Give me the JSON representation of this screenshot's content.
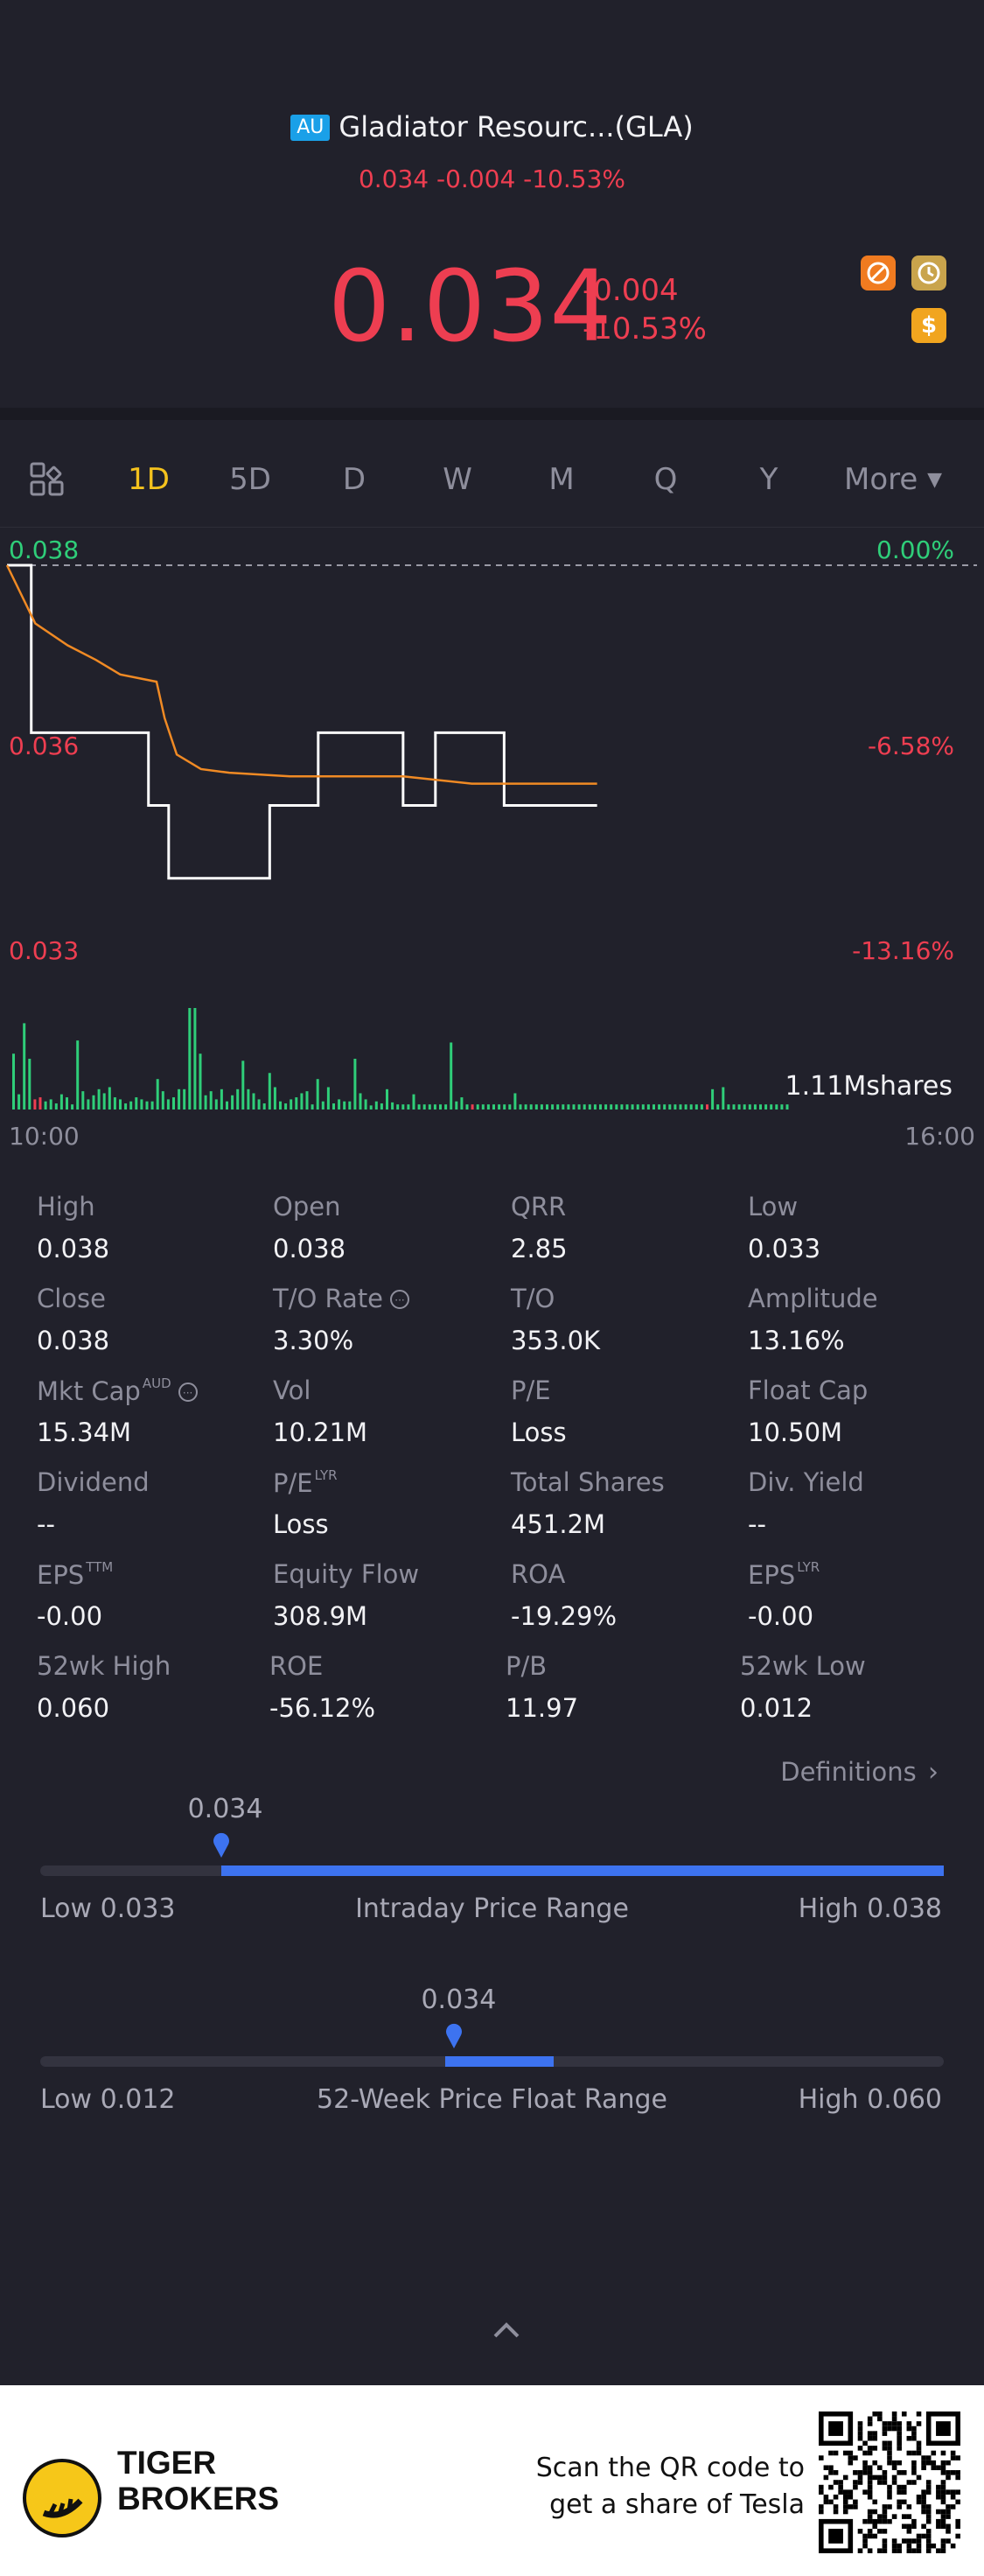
{
  "header": {
    "market_badge": "AU",
    "title": "Gladiator Resourc...(GLA)",
    "sub_quote": "0.034 -0.004 -10.53%",
    "price": "0.034",
    "change": "-0.004",
    "change_pct": "-10.53%"
  },
  "header_icons": [
    "no-trade-icon",
    "history-icon",
    "dollar-icon"
  ],
  "tabs": [
    "1D",
    "5D",
    "D",
    "W",
    "M",
    "Q",
    "Y",
    "More"
  ],
  "active_tab": "1D",
  "chart_labels": {
    "y_left_top": "0.038",
    "y_left_mid": "0.036",
    "y_left_bot": "0.033",
    "y_right_top": "0.00%",
    "y_right_mid": "-6.58%",
    "y_right_bot": "-13.16%",
    "volume_label": "1.11Mshares",
    "time_start": "10:00",
    "time_end": "16:00"
  },
  "chart_data": {
    "type": "line",
    "x_range": [
      "10:00",
      "16:00"
    ],
    "ylim": [
      0.033,
      0.038
    ],
    "reference_line": 0.038,
    "series": [
      {
        "points": [
          [
            0,
            0.038
          ],
          [
            6,
            0.038
          ],
          [
            6,
            0.0357
          ],
          [
            35,
            0.0357
          ],
          [
            35,
            0.0347
          ],
          [
            40,
            0.0347
          ],
          [
            40,
            0.0337
          ],
          [
            65,
            0.0337
          ],
          [
            65,
            0.0347
          ],
          [
            77,
            0.0347
          ],
          [
            77,
            0.0357
          ],
          [
            98,
            0.0357
          ],
          [
            98,
            0.0347
          ],
          [
            106,
            0.0347
          ],
          [
            106,
            0.0357
          ],
          [
            123,
            0.0357
          ],
          [
            123,
            0.0347
          ],
          [
            146,
            0.0347
          ]
        ],
        "color": "#ffffff"
      },
      {
        "points": [
          [
            0,
            0.038
          ],
          [
            7,
            0.0372
          ],
          [
            15,
            0.0369
          ],
          [
            22,
            0.0367
          ],
          [
            28,
            0.0365
          ],
          [
            37,
            0.0364
          ],
          [
            39,
            0.0359
          ],
          [
            42,
            0.0354
          ],
          [
            48,
            0.0352
          ],
          [
            55,
            0.03515
          ],
          [
            70,
            0.0351
          ],
          [
            98,
            0.0351
          ],
          [
            115,
            0.035
          ],
          [
            146,
            0.035
          ]
        ],
        "color": "#f08a24"
      }
    ],
    "volume": {
      "heights": [
        0.55,
        0.15,
        0.85,
        0.5,
        0.1,
        0.12,
        0.08,
        0.1,
        0.06,
        0.15,
        0.12,
        0.05,
        0.68,
        0.18,
        0.1,
        0.14,
        0.2,
        0.16,
        0.22,
        0.12,
        0.1,
        0.06,
        0.08,
        0.12,
        0.1,
        0.08,
        0.08,
        0.3,
        0.18,
        0.1,
        0.12,
        0.2,
        0.2,
        1.0,
        1.0,
        0.55,
        0.14,
        0.18,
        0.1,
        0.2,
        0.08,
        0.14,
        0.2,
        0.48,
        0.2,
        0.16,
        0.1,
        0.06,
        0.36,
        0.22,
        0.08,
        0.06,
        0.1,
        0.12,
        0.16,
        0.18,
        0.05,
        0.3,
        0.08,
        0.22,
        0.06,
        0.1,
        0.08,
        0.08,
        0.5,
        0.16,
        0.1,
        0.04,
        0.08,
        0.06,
        0.2,
        0.07,
        0.05,
        0.05,
        0.05,
        0.15,
        0.05,
        0.05,
        0.05,
        0.05,
        0.05,
        0.05,
        0.66,
        0.08,
        0.12,
        0.05,
        0.05,
        0.05,
        0.05,
        0.05,
        0.05,
        0.05,
        0.05,
        0.05,
        0.16,
        0.05,
        0.05,
        0.05,
        0.05,
        0.05,
        0.05,
        0.05,
        0.05,
        0.05,
        0.05,
        0.05,
        0.05,
        0.05,
        0.05,
        0.05,
        0.05,
        0.05,
        0.05,
        0.05,
        0.05,
        0.05,
        0.05,
        0.05,
        0.05,
        0.05,
        0.05,
        0.05,
        0.05,
        0.05,
        0.05,
        0.05,
        0.05,
        0.05,
        0.05,
        0.05,
        0.05,
        0.2,
        0.05,
        0.22,
        0.05,
        0.05,
        0.05,
        0.05,
        0.05,
        0.05,
        0.05,
        0.05,
        0.05,
        0.05,
        0.05,
        0.05
      ],
      "red_indices": [
        4,
        5,
        86,
        130
      ]
    }
  },
  "stats": [
    {
      "label": "High",
      "value": "0.038",
      "sup": "",
      "info": false
    },
    {
      "label": "Open",
      "value": "0.038",
      "sup": "",
      "info": false
    },
    {
      "label": "QRR",
      "value": "2.85",
      "sup": "",
      "info": false
    },
    {
      "label": "Low",
      "value": "0.033",
      "sup": "",
      "info": false
    },
    {
      "label": "Close",
      "value": "0.038",
      "sup": "",
      "info": false
    },
    {
      "label": "T/O Rate",
      "value": "3.30%",
      "sup": "",
      "info": true
    },
    {
      "label": "T/O",
      "value": "353.0K",
      "sup": "",
      "info": false
    },
    {
      "label": "Amplitude",
      "value": "13.16%",
      "sup": "",
      "info": false
    },
    {
      "label": "Mkt Cap",
      "value": "15.34M",
      "sup": "AUD",
      "info": true
    },
    {
      "label": "Vol",
      "value": "10.21M",
      "sup": "",
      "info": false
    },
    {
      "label": "P/E",
      "value": "Loss",
      "sup": "",
      "info": false
    },
    {
      "label": "Float Cap",
      "value": "10.50M",
      "sup": "",
      "info": false
    },
    {
      "label": "Dividend",
      "value": "--",
      "sup": "",
      "info": false
    },
    {
      "label": "P/E",
      "value": "Loss",
      "sup": "LYR",
      "info": false
    },
    {
      "label": "Total Shares",
      "value": "451.2M",
      "sup": "",
      "info": false
    },
    {
      "label": "Div. Yield",
      "value": "--",
      "sup": "",
      "info": false
    },
    {
      "label": "EPS",
      "value": "-0.00",
      "sup": "TTM",
      "info": false
    },
    {
      "label": "Equity Flow",
      "value": "308.9M",
      "sup": "",
      "info": false
    },
    {
      "label": "ROA",
      "value": "-19.29%",
      "sup": "",
      "info": false
    },
    {
      "label": "EPS",
      "value": "-0.00",
      "sup": "LYR",
      "info": false
    },
    {
      "label": "52wk High",
      "value": "0.060",
      "sup": "",
      "info": false
    },
    {
      "label": "ROE",
      "value": "-56.12%",
      "sup": "",
      "info": false
    },
    {
      "label": "P/B",
      "value": "11.97",
      "sup": "",
      "info": false
    },
    {
      "label": "52wk Low",
      "value": "0.012",
      "sup": "",
      "info": false
    }
  ],
  "definitions_label": "Definitions",
  "intraday_range": {
    "current": "0.034",
    "low_label": "Low 0.033",
    "high_label": "High 0.038",
    "title": "Intraday Price Range",
    "low": 0.033,
    "high": 0.038,
    "value": 0.034
  },
  "week52_range": {
    "current": "0.034",
    "low_label": "Low 0.012",
    "high_label": "High 0.060",
    "title": "52-Week Price Float Range",
    "low": 0.012,
    "high": 0.06,
    "value": 0.034
  },
  "footer": {
    "brand_line1": "TIGER",
    "brand_line2": "BROKERS",
    "promo_line1": "Scan the QR code to",
    "promo_line2": "get a share of Tesla"
  },
  "colors": {
    "down": "#ee3e51",
    "up": "#2fce79",
    "accent": "#f4c21d",
    "range_fill": "#3d73f0",
    "price_line": "#ffffff",
    "avg_line": "#f08a24"
  }
}
